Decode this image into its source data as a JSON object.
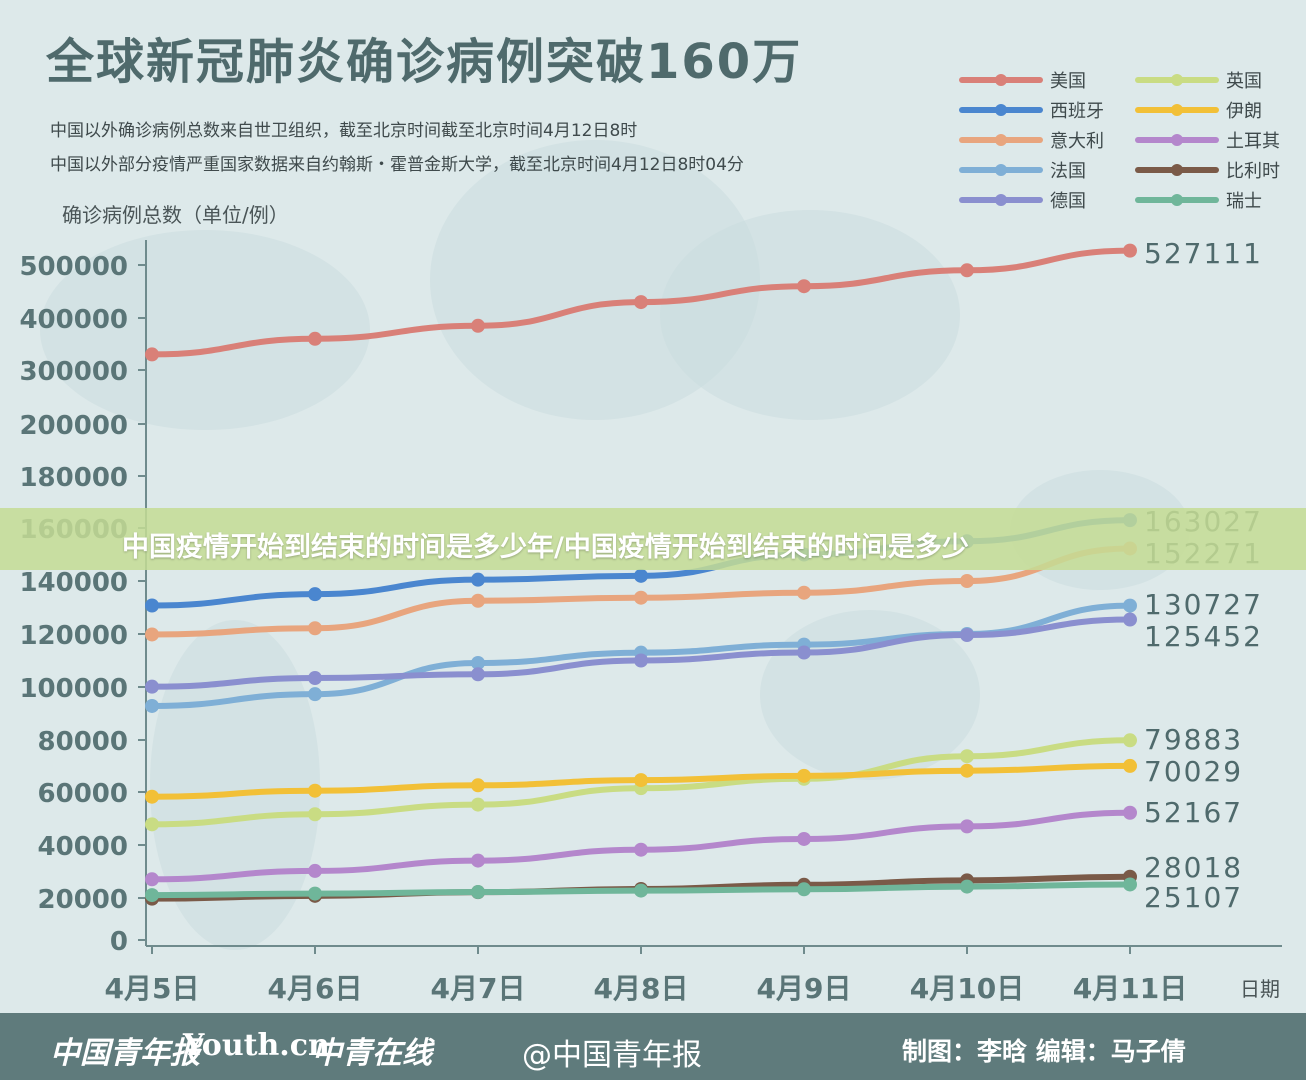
{
  "header": {
    "title": "全球新冠肺炎确诊病例突破160万",
    "note_1": "中国以外确诊病例总数来自世卫组织，截至北京时间截至北京时间4月12日8时",
    "note_2": "中国以外部分疫情严重国家数据来自约翰斯・霍普金斯大学，截至北京时间4月12日8时04分"
  },
  "banner": {
    "text": "中国疫情开始到结束的时间是多少年/中国疫情开始到结束的时间是多少"
  },
  "footer": {
    "logo_1": "中国青年报",
    "logo_2": "Youth.cn",
    "logo_3": "中青在线",
    "weibo": "@中国青年报",
    "credit": "制图：李晗  编辑：马子倩"
  },
  "colors": {
    "background": "#dde9ea",
    "axis": "#6f8b8d",
    "tick_text": "#5a7577",
    "value_text": "#4f6a6c"
  },
  "chart_data": {
    "type": "line",
    "ylabel": "确诊病例总数（单位/例）",
    "xlabel": "日期",
    "categories": [
      "4月5日",
      "4月6日",
      "4月7日",
      "4月8日",
      "4月9日",
      "4月10日",
      "4月11日"
    ],
    "y_ticks": [
      0,
      20000,
      40000,
      60000,
      80000,
      100000,
      120000,
      140000,
      160000,
      180000,
      200000,
      300000,
      400000,
      500000
    ],
    "legend_position": "top-right",
    "grid": false,
    "series": [
      {
        "name": "美国",
        "color": "#d98078",
        "values": [
          330000,
          360000,
          385000,
          430000,
          460000,
          490000,
          527111
        ],
        "end_label": "527111"
      },
      {
        "name": "西班牙",
        "color": "#4a86cf",
        "values": [
          130759,
          135032,
          140510,
          141942,
          150000,
          155000,
          163027
        ],
        "end_label": "163027"
      },
      {
        "name": "意大利",
        "color": "#e8a57e",
        "values": [
          119827,
          122171,
          132547,
          133700,
          135586,
          140000,
          152271
        ],
        "end_label": "152271"
      },
      {
        "name": "法国",
        "color": "#7fafd6",
        "values": [
          92839,
          97301,
          109069,
          112950,
          116000,
          120000,
          130727
        ],
        "end_label": "130727"
      },
      {
        "name": "德国",
        "color": "#8a8fcf",
        "values": [
          100123,
          103374,
          104800,
          110000,
          113000,
          119624,
          125452
        ],
        "end_label": "125452"
      },
      {
        "name": "英国",
        "color": "#c9dc83",
        "values": [
          47806,
          51608,
          55242,
          61474,
          65077,
          73758,
          79883
        ],
        "end_label": "79883"
      },
      {
        "name": "伊朗",
        "color": "#f2c037",
        "values": [
          58226,
          60500,
          62589,
          64586,
          66220,
          68192,
          70029
        ],
        "end_label": "70029"
      },
      {
        "name": "土耳其",
        "color": "#b487cc",
        "values": [
          27069,
          30217,
          34109,
          38226,
          42282,
          47029,
          52167
        ],
        "end_label": "52167"
      },
      {
        "name": "比利时",
        "color": "#7a5a48",
        "values": [
          19691,
          20814,
          22194,
          23403,
          24983,
          26667,
          28018
        ],
        "end_label": "28018"
      },
      {
        "name": "瑞士",
        "color": "#6fb69a",
        "values": [
          21100,
          21657,
          22242,
          22789,
          23280,
          24308,
          25107
        ],
        "end_label": "25107"
      }
    ]
  }
}
